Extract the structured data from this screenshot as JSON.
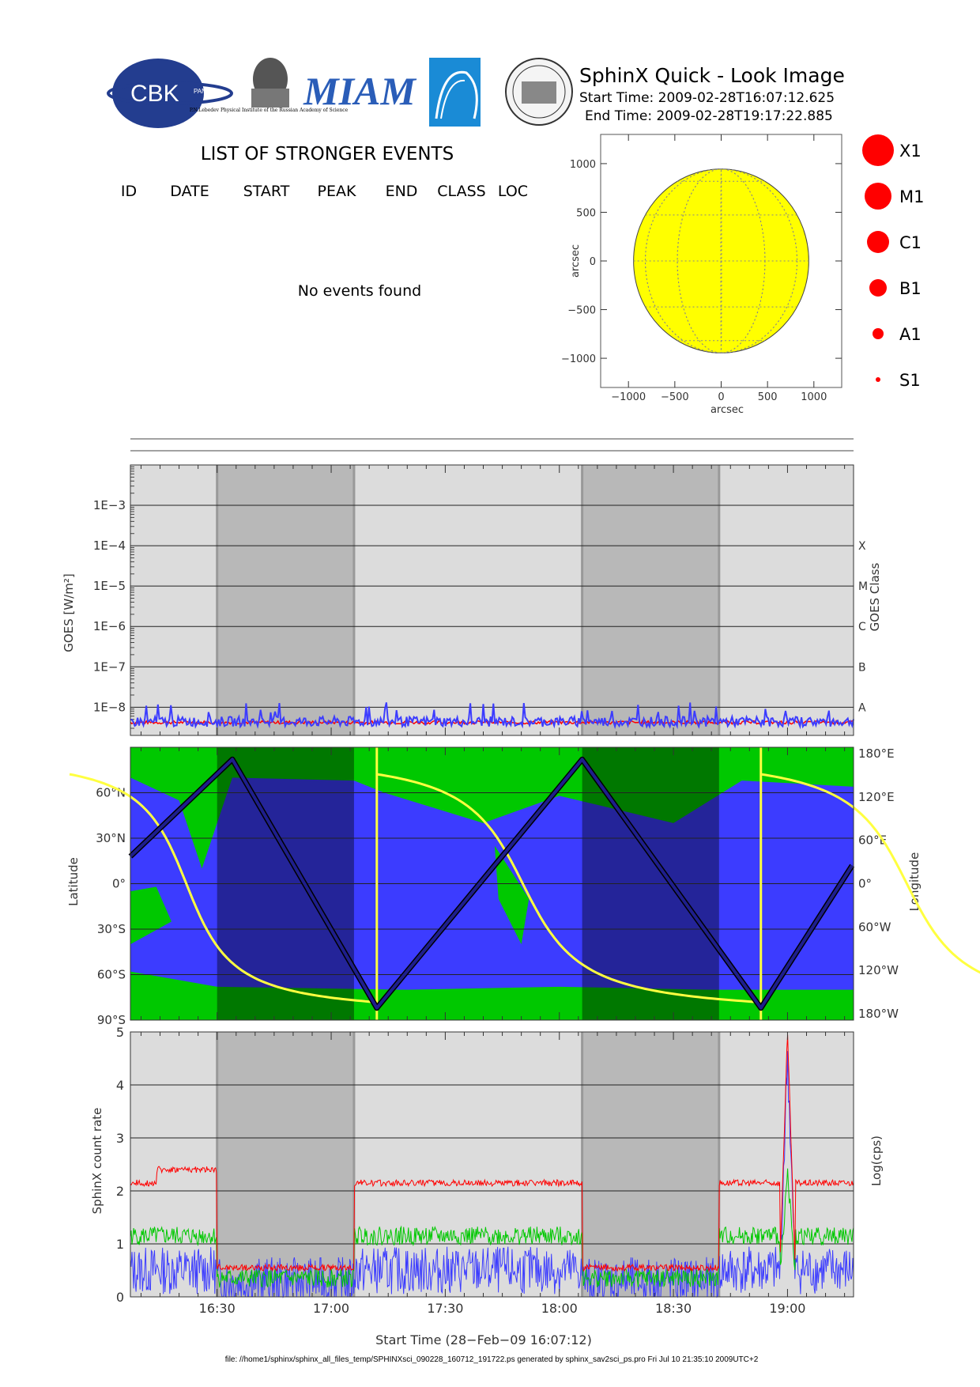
{
  "header": {
    "title": "SphinX Quick - Look Image",
    "start_label": "Start Time: 2009-02-28T16:07:12.625",
    "end_label": "End Time: 2009-02-28T19:17:22.885",
    "logos": [
      {
        "name": "cbk-logo",
        "text": "CBK",
        "subtext": "PAN"
      },
      {
        "name": "lebedev-logo",
        "text": "P.N.Lebedev Physical Institute of the Russian Academy of Science"
      },
      {
        "name": "miam-logo",
        "text": "MIAM"
      },
      {
        "name": "arc-logo",
        "text": ""
      },
      {
        "name": "seal-logo",
        "text": ""
      }
    ]
  },
  "events": {
    "title": "LIST OF STRONGER EVENTS",
    "columns": [
      "ID",
      "DATE",
      "START",
      "PEAK",
      "END",
      "CLASS",
      "LOC"
    ],
    "empty_message": "No events found"
  },
  "colors": {
    "disk": "#ffff00",
    "grey_light": "#dcdcdc",
    "grey_dark": "#b8b8b8",
    "blue": "#3c3cff",
    "green": "#00c800",
    "red": "#ff0000",
    "yellow": "#ffff40",
    "navy": "#1e1e8c"
  },
  "chart_data": [
    {
      "type": "scatter",
      "name": "solar-disk",
      "xlabel": "arcsec",
      "ylabel": "arcsec",
      "xlim": [
        -1300,
        1300
      ],
      "ylim": [
        -1300,
        1300
      ],
      "xticks": [
        -1000,
        -500,
        0,
        500,
        1000
      ],
      "yticks": [
        -1000,
        -500,
        0,
        500,
        1000
      ],
      "xtick_labels": [
        "−1000",
        "−500",
        "0",
        "500",
        "1000"
      ],
      "ytick_labels": [
        "−1000",
        "−500",
        "0",
        "500",
        "1000"
      ],
      "disk_radius": 945,
      "legend": [
        "X1",
        "M1",
        "C1",
        "B1",
        "A1",
        "S1"
      ],
      "points": []
    },
    {
      "type": "line",
      "name": "goes-flux",
      "ylabel": "GOES [W/m²]",
      "y2label": "GOES Class",
      "yscale": "log",
      "ylim": [
        2e-09,
        0.01
      ],
      "yticks": [
        0.001,
        0.0001,
        1e-05,
        1e-06,
        1e-07,
        1e-08
      ],
      "ytick_labels": [
        "1E−3",
        "1E−4",
        "1E−5",
        "1E−6",
        "1E−7",
        "1E−8"
      ],
      "class_labels": [
        "X",
        "M",
        "C",
        "B",
        "A"
      ],
      "series": [
        {
          "color": "red",
          "level": 4.2e-09
        },
        {
          "color": "blue",
          "level": 4.4e-09
        }
      ]
    },
    {
      "type": "area",
      "name": "orbit-map",
      "ylabel": "Latitude",
      "y2label": "Longitude",
      "ylim": [
        -90,
        90
      ],
      "yticks": [
        60,
        30,
        0,
        -30,
        -60,
        -90
      ],
      "ytick_labels": [
        "60°N",
        "30°N",
        "0°",
        "30°S",
        "60°S",
        "90°S"
      ],
      "y2tick_labels": [
        "180°E",
        "120°E",
        "60°E",
        "0°",
        "60°W",
        "120°W",
        "180°W"
      ],
      "latitude_track": [
        {
          "time": "16:07:12",
          "lat": 18
        },
        {
          "time": "16:34",
          "lat": 82
        },
        {
          "time": "17:12",
          "lat": -82
        },
        {
          "time": "18:06",
          "lat": 82
        },
        {
          "time": "18:53",
          "lat": -82
        },
        {
          "time": "19:17",
          "lat": 12
        }
      ]
    },
    {
      "type": "line",
      "name": "sphinx-count-rate",
      "ylabel": "SphinX count rate",
      "y2label": "Log(cps)",
      "xlabel": "Start Time (28−Feb−09 16:07:12)",
      "ylim": [
        0,
        5
      ],
      "yticks": [
        0,
        1,
        2,
        3,
        4,
        5
      ],
      "ytick_labels": [
        "0",
        "1",
        "2",
        "3",
        "4",
        "5"
      ],
      "x_range": [
        "16:07:12",
        "19:17:22"
      ],
      "xtick_labels": [
        "16:30",
        "17:00",
        "17:30",
        "18:00",
        "18:30",
        "19:00"
      ],
      "eclipse_intervals": [
        [
          "16:30",
          "17:06"
        ],
        [
          "18:06",
          "18:42"
        ]
      ],
      "series": [
        {
          "color": "red",
          "orbit_day_level": 2.15,
          "night_level": 0.55,
          "peak": 5.0
        },
        {
          "color": "green",
          "orbit_day_level": 1.15,
          "night_level": 0.35,
          "peak": 2.4
        },
        {
          "color": "blue",
          "orbit_day_level": 0.5,
          "night_level": 0.3,
          "peak": 4.6
        }
      ]
    }
  ],
  "footer": {
    "text": "file: //home1/sphinx/sphinx_all_files_temp/SPHINXsci_090228_160712_191722.ps generated by sphinx_sav2sci_ps.pro Fri Jul 10 21:35:10 2009UTC+2"
  }
}
